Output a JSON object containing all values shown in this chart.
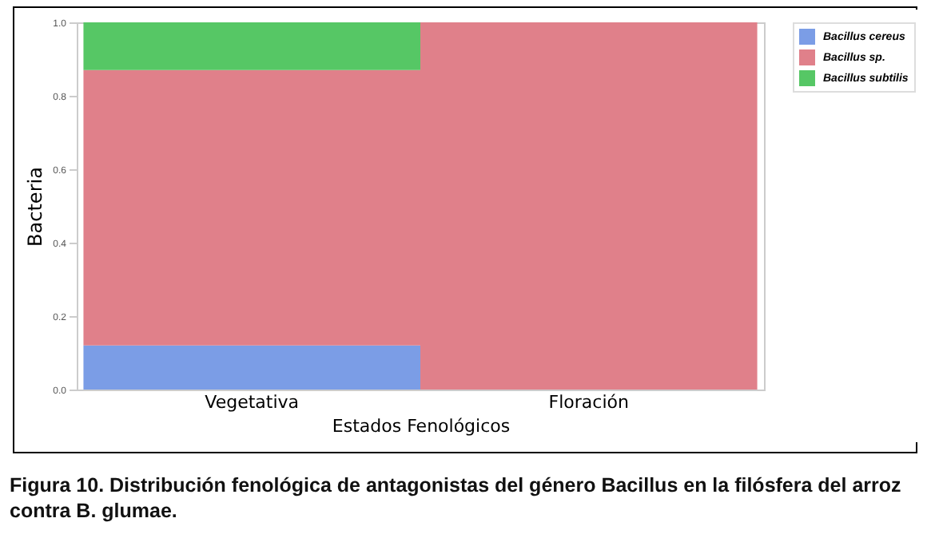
{
  "chart_data": {
    "type": "bar",
    "stacked": true,
    "categories": [
      "Vegetativa",
      "Floración"
    ],
    "xlabel": "Estados Fenológicos",
    "ylabel": "Bacteria",
    "series": [
      {
        "name": "Bacillus cereus",
        "color": "#7b9de6",
        "values": [
          0.12,
          0
        ]
      },
      {
        "name": "Bacillus sp.",
        "color": "#e0808a",
        "values": [
          0.75,
          1.0
        ]
      },
      {
        "name": "Bacillus subtilis",
        "color": "#56c765",
        "values": [
          0.13,
          0
        ]
      }
    ],
    "ylim": [
      0,
      1
    ],
    "yticks": [
      {
        "value": 0,
        "label": "0.0"
      },
      {
        "value": 0.2,
        "label": "0.2"
      },
      {
        "value": 0.4,
        "label": "0.4"
      },
      {
        "value": 0.6,
        "label": "0.6"
      },
      {
        "value": 0.8,
        "label": "0.8"
      },
      {
        "value": 1,
        "label": "1.0"
      }
    ],
    "legend": "top right",
    "grid": false,
    "annotations": [
      "Figura 10. Distribución fenológica de antagonistas del género Bacillus en la filósfera del arroz contra B. glumae."
    ]
  }
}
